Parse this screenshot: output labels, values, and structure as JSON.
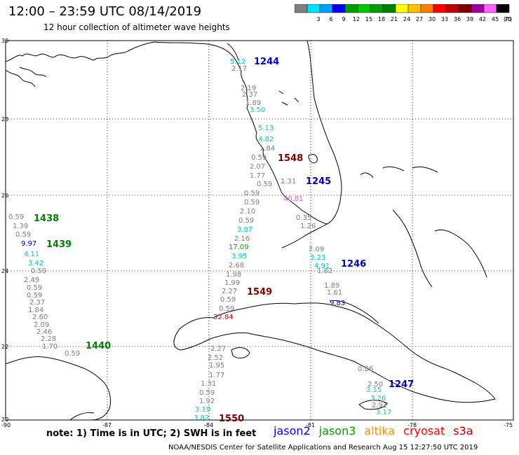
{
  "header": {
    "title": "12:00 – 23:59 UTC 08/14/2019",
    "subtitle": "12 hour collection of altimeter wave heights"
  },
  "colorbar": {
    "unit": "(ft)",
    "bins": [
      {
        "label": "",
        "color": "#808080"
      },
      {
        "label": "3",
        "color": "#00e0ff"
      },
      {
        "label": "6",
        "color": "#00a0ff"
      },
      {
        "label": "9",
        "color": "#0000ff"
      },
      {
        "label": "12",
        "color": "#00a000"
      },
      {
        "label": "15",
        "color": "#00c800"
      },
      {
        "label": "18",
        "color": "#00a000"
      },
      {
        "label": "21",
        "color": "#008000"
      },
      {
        "label": "24",
        "color": "#ffff00"
      },
      {
        "label": "27",
        "color": "#ffc000"
      },
      {
        "label": "30",
        "color": "#ff8000"
      },
      {
        "label": "33",
        "color": "#ff0000"
      },
      {
        "label": "36",
        "color": "#c00000"
      },
      {
        "label": "39",
        "color": "#800000"
      },
      {
        "label": "42",
        "color": "#a000a0"
      },
      {
        "label": "45",
        "color": "#ff60ff"
      },
      {
        "label": "70",
        "color": "#000000"
      }
    ]
  },
  "axes": {
    "lat_labels": [
      "30",
      "28",
      "26",
      "24",
      "22",
      "20"
    ],
    "lon_labels": [
      "-90",
      "-87",
      "-84",
      "-81",
      "-78",
      "-75"
    ]
  },
  "passes": [
    {
      "id": "1244",
      "color": "#0000c0"
    },
    {
      "id": "1548",
      "color": "#800000"
    },
    {
      "id": "1245",
      "color": "#0000c0"
    },
    {
      "id": "1438",
      "color": "#008000"
    },
    {
      "id": "1439",
      "color": "#008000"
    },
    {
      "id": "1246",
      "color": "#0000c0"
    },
    {
      "id": "1549",
      "color": "#800000"
    },
    {
      "id": "1440",
      "color": "#008000"
    },
    {
      "id": "1247",
      "color": "#0000c0"
    },
    {
      "id": "1550",
      "color": "#800000"
    }
  ],
  "readings": [
    {
      "v": "5.12",
      "c": "#00cccc"
    },
    {
      "v": "2.17",
      "c": "#808080"
    },
    {
      "v": "2.19",
      "c": "#808080"
    },
    {
      "v": "2.37",
      "c": "#808080"
    },
    {
      "v": "1.89",
      "c": "#808080"
    },
    {
      "v": "3.50",
      "c": "#00cccc"
    },
    {
      "v": "5.13",
      "c": "#00cccc"
    },
    {
      "v": "4.82",
      "c": "#00cccc"
    },
    {
      "v": "1.84",
      "c": "#808080"
    },
    {
      "v": "0.59",
      "c": "#808080"
    },
    {
      "v": "2.07",
      "c": "#808080"
    },
    {
      "v": "1.77",
      "c": "#808080"
    },
    {
      "v": "0.59",
      "c": "#808080"
    },
    {
      "v": "1.31",
      "c": "#808080"
    },
    {
      "v": "0.59",
      "c": "#808080"
    },
    {
      "v": "0.59",
      "c": "#808080"
    },
    {
      "v": "2.10",
      "c": "#808080"
    },
    {
      "v": "0.59",
      "c": "#808080"
    },
    {
      "v": "3.87",
      "c": "#00cccc"
    },
    {
      "v": "2.16",
      "c": "#808080"
    },
    {
      "v": "17.09",
      "c": "#00b000"
    },
    {
      "v": "3.95",
      "c": "#00cccc"
    },
    {
      "v": "2.68",
      "c": "#808080"
    },
    {
      "v": "1.98",
      "c": "#808080"
    },
    {
      "v": "1.99",
      "c": "#808080"
    },
    {
      "v": "2.27",
      "c": "#808080"
    },
    {
      "v": "0.59",
      "c": "#808080"
    },
    {
      "v": "0.59",
      "c": "#808080"
    },
    {
      "v": "32.84",
      "c": "#d00000"
    },
    {
      "v": "40.81",
      "c": "#e060e0"
    },
    {
      "v": "0.35",
      "c": "#808080"
    },
    {
      "v": "1.26",
      "c": "#808080"
    },
    {
      "v": "2.09",
      "c": "#808080"
    },
    {
      "v": "3.23",
      "c": "#00cccc"
    },
    {
      "v": "4.91",
      "c": "#00cccc"
    },
    {
      "v": "1.82",
      "c": "#808080"
    },
    {
      "v": "1.89",
      "c": "#808080"
    },
    {
      "v": "1.61",
      "c": "#808080"
    },
    {
      "v": "9.83",
      "c": "#0000c0"
    },
    {
      "v": "0.59",
      "c": "#808080"
    },
    {
      "v": "1.39",
      "c": "#808080"
    },
    {
      "v": "0.59",
      "c": "#808080"
    },
    {
      "v": "9.97",
      "c": "#0000c0"
    },
    {
      "v": "4.11",
      "c": "#00cccc"
    },
    {
      "v": "3.42",
      "c": "#00cccc"
    },
    {
      "v": "0.59",
      "c": "#808080"
    },
    {
      "v": "2.49",
      "c": "#808080"
    },
    {
      "v": "0.59",
      "c": "#808080"
    },
    {
      "v": "0.59",
      "c": "#808080"
    },
    {
      "v": "2.37",
      "c": "#808080"
    },
    {
      "v": "1.84",
      "c": "#808080"
    },
    {
      "v": "2.60",
      "c": "#808080"
    },
    {
      "v": "2.09",
      "c": "#808080"
    },
    {
      "v": "2.46",
      "c": "#808080"
    },
    {
      "v": "2.28",
      "c": "#808080"
    },
    {
      "v": "1.70",
      "c": "#808080"
    },
    {
      "v": "0.59",
      "c": "#808080"
    },
    {
      "v": "2.27",
      "c": "#808080"
    },
    {
      "v": "2.52",
      "c": "#808080"
    },
    {
      "v": "1.95",
      "c": "#808080"
    },
    {
      "v": "1.77",
      "c": "#808080"
    },
    {
      "v": "1.31",
      "c": "#808080"
    },
    {
      "v": "0.59",
      "c": "#808080"
    },
    {
      "v": "1.92",
      "c": "#808080"
    },
    {
      "v": "3.19",
      "c": "#00cccc"
    },
    {
      "v": "3.82",
      "c": "#00cccc"
    },
    {
      "v": "0.86",
      "c": "#808080"
    },
    {
      "v": "2.50",
      "c": "#808080"
    },
    {
      "v": "3.15",
      "c": "#00cccc"
    },
    {
      "v": "3.26",
      "c": "#00cccc"
    },
    {
      "v": "2.91",
      "c": "#808080"
    },
    {
      "v": "3.17",
      "c": "#00cccc"
    }
  ],
  "note": "note: 1) Time is in UTC; 2) SWH is in feet",
  "legend": [
    {
      "name": "jason2",
      "color": "#0000ff"
    },
    {
      "name": "jason3",
      "color": "#00a000"
    },
    {
      "name": "altika",
      "color": "#ff9000"
    },
    {
      "name": "cryosat",
      "color": "#ff0000"
    },
    {
      "name": "s3a",
      "color": "#c00000"
    }
  ],
  "footer": "NOAA/NESDIS Center for Satellite Applications and Research    Aug 15 12:27:50 UTC 2019"
}
